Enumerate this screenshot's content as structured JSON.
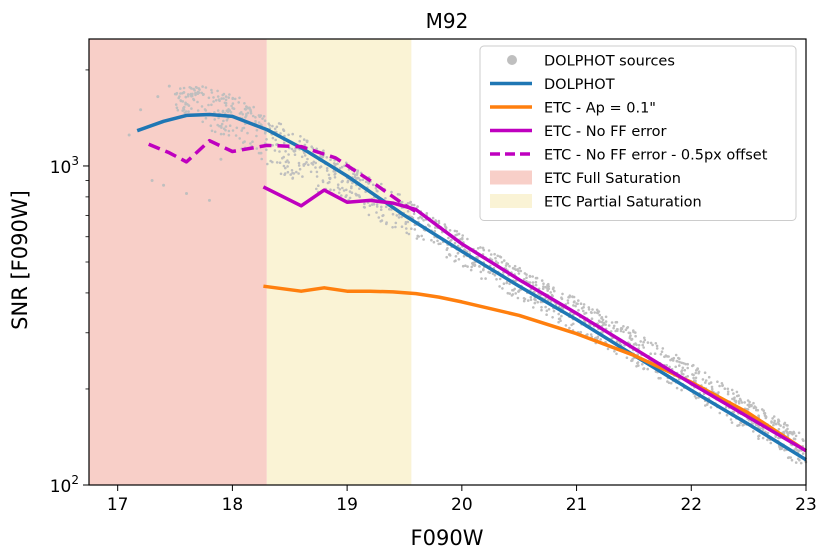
{
  "chart_data": {
    "type": "line",
    "title": "M92",
    "xlabel": "F090W",
    "ylabel": "SNR [F090W]",
    "xlim": [
      16.75,
      23.0
    ],
    "ylim": [
      100,
      2500
    ],
    "yscale": "log",
    "xticks": [
      17,
      18,
      19,
      20,
      21,
      22,
      23
    ],
    "yticks": [
      {
        "value": 100,
        "base": "10",
        "exp": "2"
      },
      {
        "value": 1000,
        "base": "10",
        "exp": "3"
      }
    ],
    "grid": false,
    "legend_position": "top-right",
    "regions": [
      {
        "name": "ETC Full Saturation",
        "x0": 16.75,
        "x1": 18.3,
        "color": "#f8cfc8"
      },
      {
        "name": "ETC Partial Saturation",
        "x0": 18.3,
        "x1": 19.56,
        "color": "#faf3d5"
      }
    ],
    "scatter": {
      "name": "DOLPHOT sources",
      "color": "#bfbfbf",
      "band": [
        {
          "x": 17.5,
          "lo": 1500,
          "hi": 1850
        },
        {
          "x": 18.0,
          "lo": 1180,
          "hi": 1700
        },
        {
          "x": 18.5,
          "lo": 900,
          "hi": 1300
        },
        {
          "x": 19.0,
          "lo": 760,
          "hi": 1020
        },
        {
          "x": 19.5,
          "lo": 610,
          "hi": 800
        },
        {
          "x": 20.0,
          "lo": 480,
          "hi": 610
        },
        {
          "x": 20.5,
          "lo": 380,
          "hi": 480
        },
        {
          "x": 21.0,
          "lo": 300,
          "hi": 385
        },
        {
          "x": 21.5,
          "lo": 238,
          "hi": 305
        },
        {
          "x": 22.0,
          "lo": 187,
          "hi": 240
        },
        {
          "x": 22.5,
          "lo": 145,
          "hi": 186
        },
        {
          "x": 23.0,
          "lo": 112,
          "hi": 142
        }
      ],
      "sparse": [
        {
          "x": 17.1,
          "y": 1250
        },
        {
          "x": 17.3,
          "y": 900
        },
        {
          "x": 17.4,
          "y": 870
        },
        {
          "x": 17.6,
          "y": 820
        },
        {
          "x": 17.8,
          "y": 780
        },
        {
          "x": 17.9,
          "y": 1050
        },
        {
          "x": 17.2,
          "y": 1500
        },
        {
          "x": 17.35,
          "y": 1650
        },
        {
          "x": 17.45,
          "y": 1780
        }
      ]
    },
    "series": [
      {
        "name": "DOLPHOT",
        "color": "#1f77b4",
        "style": "solid",
        "x": [
          17.17,
          17.4,
          17.6,
          17.8,
          18.0,
          18.3,
          18.6,
          19.0,
          19.5,
          20.0,
          20.5,
          21.0,
          21.5,
          22.0,
          22.5,
          23.0
        ],
        "y": [
          1290,
          1380,
          1440,
          1450,
          1430,
          1300,
          1140,
          930,
          700,
          540,
          420,
          330,
          255,
          198,
          155,
          120
        ]
      },
      {
        "name": "ETC - Ap = 0.1\"",
        "color": "#ff7f0e",
        "style": "solid",
        "x": [
          18.27,
          18.6,
          18.8,
          19.0,
          19.2,
          19.4,
          19.6,
          19.8,
          20.0,
          20.5,
          21.0,
          21.5,
          22.0,
          22.5,
          23.0
        ],
        "y": [
          420,
          405,
          415,
          405,
          405,
          403,
          398,
          388,
          375,
          340,
          298,
          255,
          210,
          168,
          128
        ]
      },
      {
        "name": "ETC - No FF error",
        "color": "#bf00bf",
        "style": "solid",
        "x": [
          18.27,
          18.6,
          18.8,
          19.0,
          19.2,
          19.4,
          19.6,
          20.0,
          20.5,
          21.0,
          21.5,
          22.0,
          22.5,
          23.0
        ],
        "y": [
          860,
          750,
          840,
          770,
          780,
          765,
          730,
          570,
          440,
          345,
          268,
          208,
          163,
          128
        ]
      },
      {
        "name": "ETC - No FF error - 0.5px offset",
        "color": "#bf00bf",
        "style": "dashed",
        "x": [
          17.27,
          17.45,
          17.6,
          17.8,
          18.0,
          18.3,
          18.6,
          18.9,
          19.2,
          19.5,
          19.6
        ],
        "y": [
          1170,
          1100,
          1030,
          1200,
          1110,
          1160,
          1150,
          1060,
          900,
          755,
          720
        ]
      }
    ],
    "legend": [
      {
        "label": "DOLPHOT sources",
        "kind": "marker",
        "color": "#bfbfbf"
      },
      {
        "label": "DOLPHOT",
        "kind": "line",
        "color": "#1f77b4",
        "style": "solid"
      },
      {
        "label": "ETC - Ap = 0.1\"",
        "kind": "line",
        "color": "#ff7f0e",
        "style": "solid"
      },
      {
        "label": "ETC - No FF error",
        "kind": "line",
        "color": "#bf00bf",
        "style": "solid"
      },
      {
        "label": "ETC - No FF error - 0.5px offset",
        "kind": "line",
        "color": "#bf00bf",
        "style": "dashed"
      },
      {
        "label": "ETC Full Saturation",
        "kind": "patch",
        "color": "#f8cfc8"
      },
      {
        "label": "ETC Partial Saturation",
        "kind": "patch",
        "color": "#faf3d5"
      }
    ]
  }
}
